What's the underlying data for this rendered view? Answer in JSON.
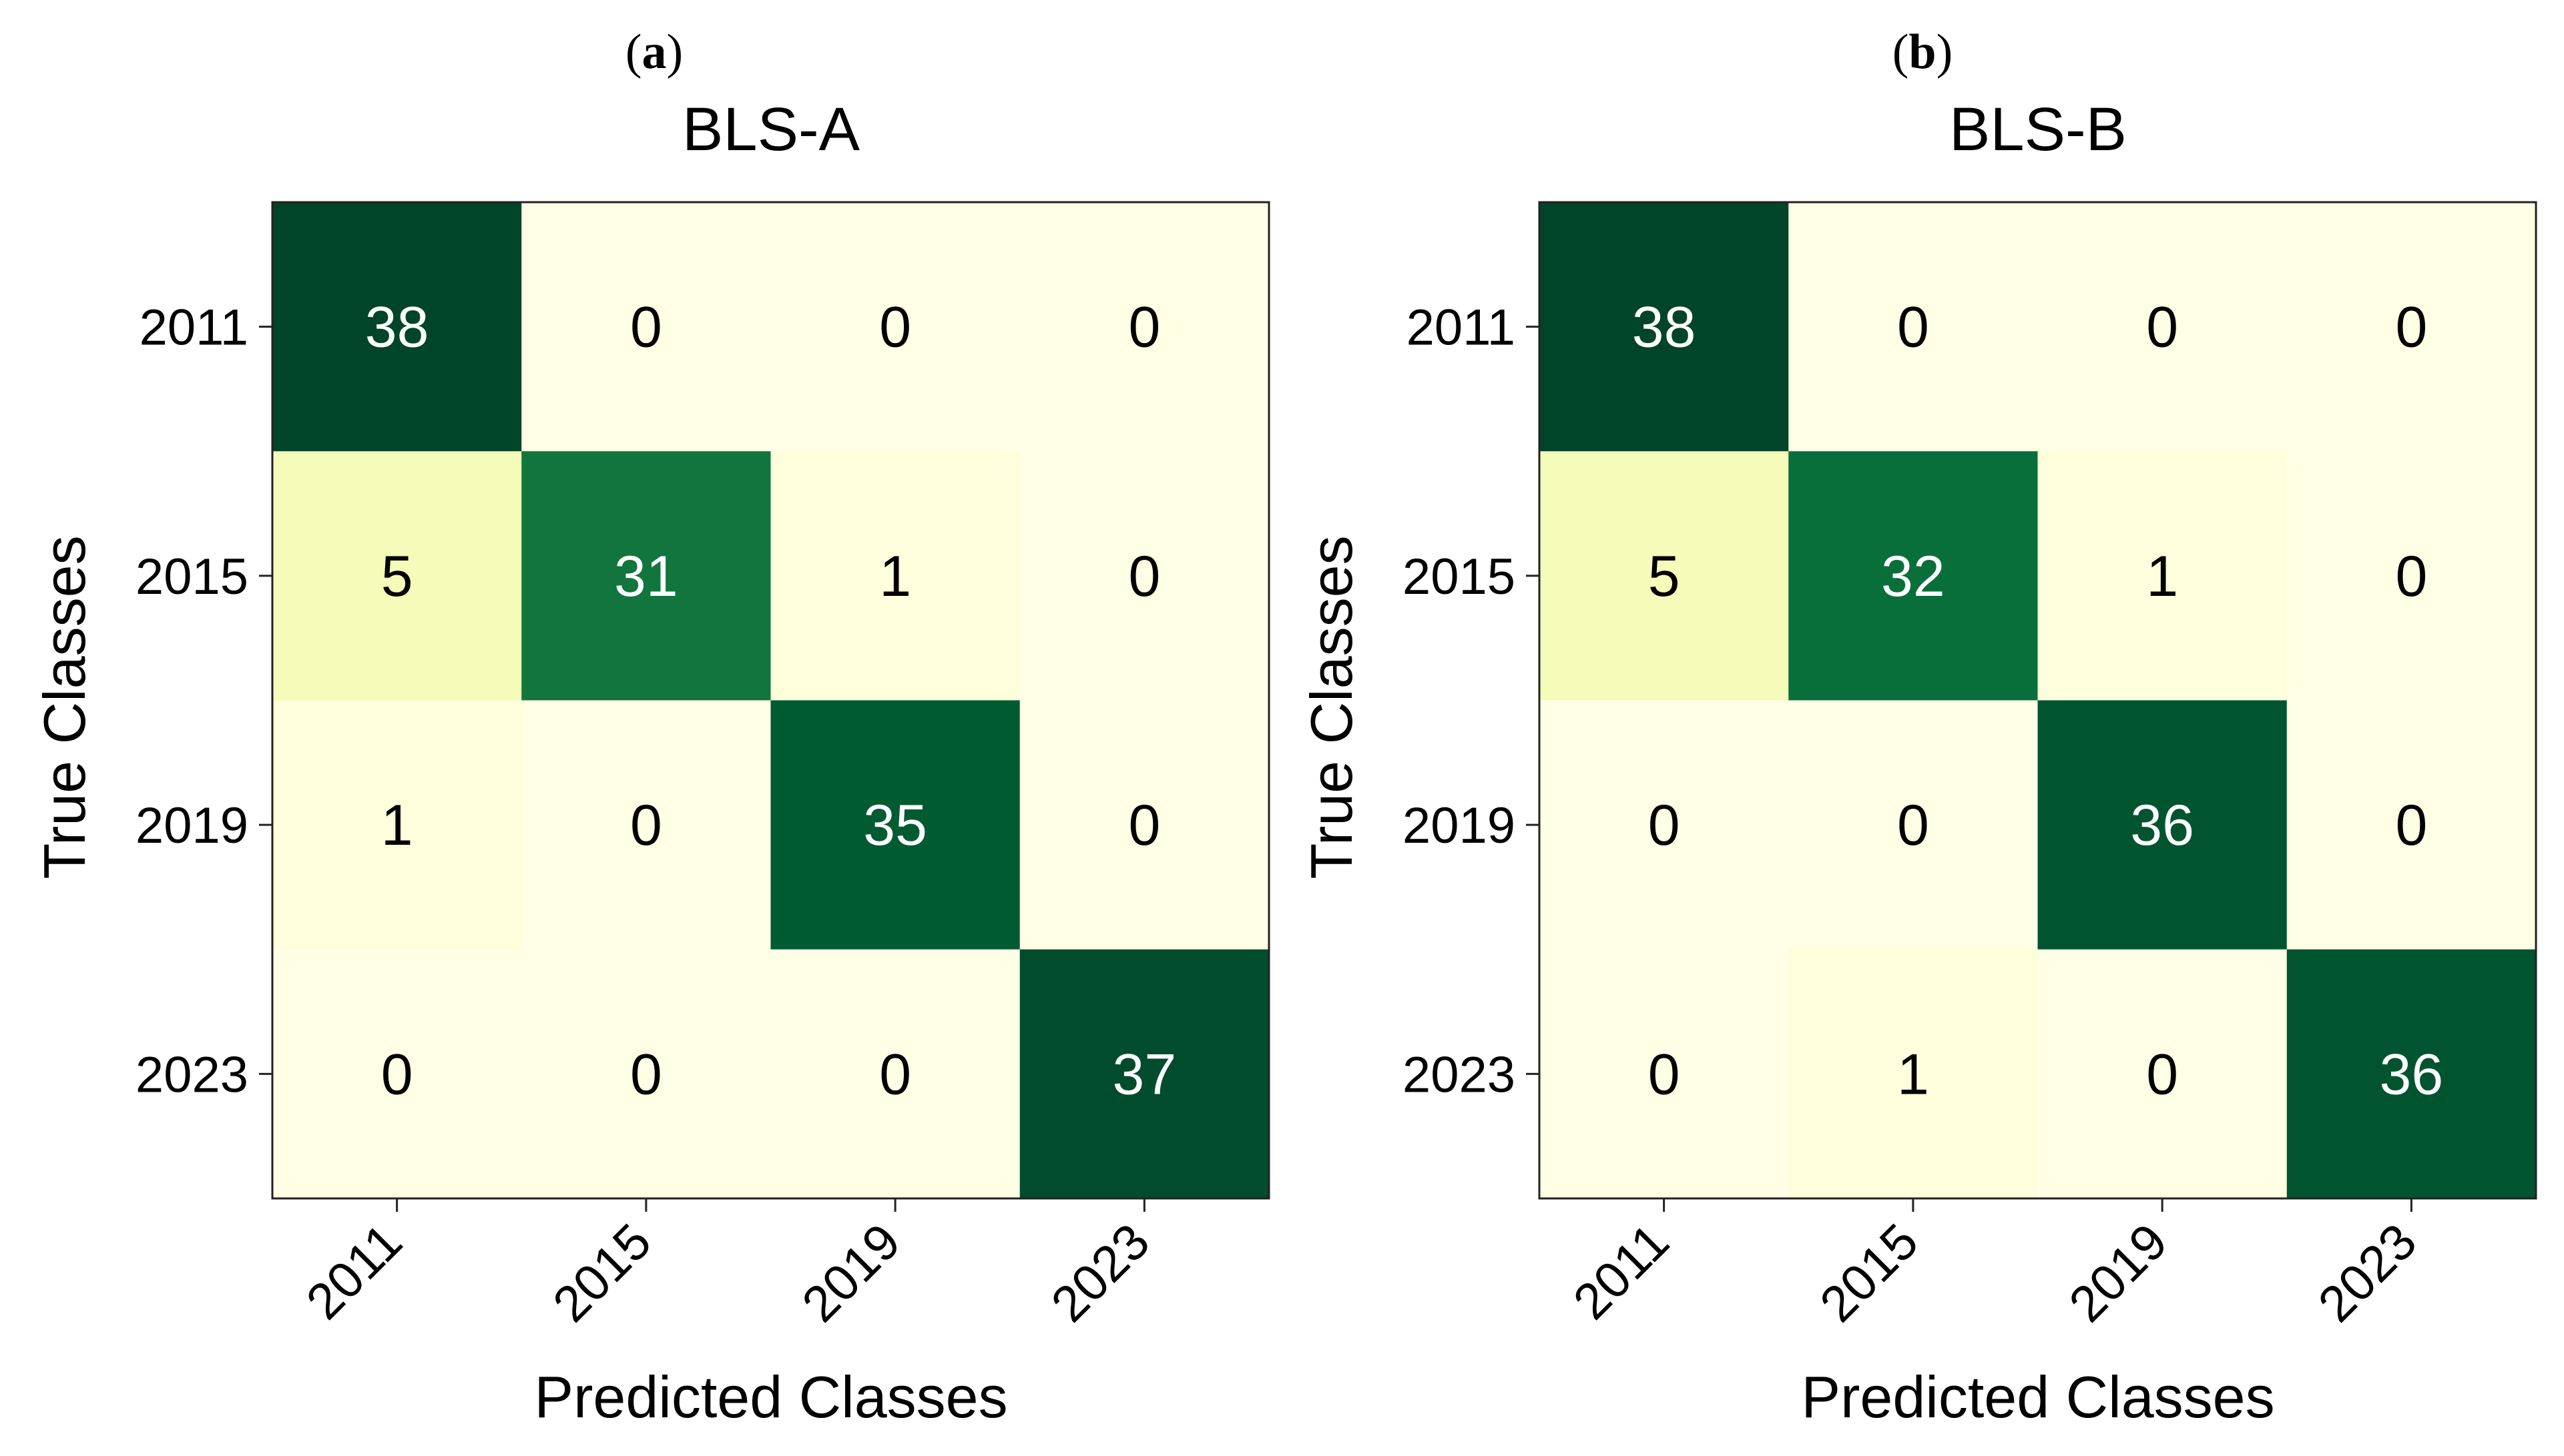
{
  "figure": {
    "panels": [
      {
        "letter": "a",
        "open": "(",
        "close": ")"
      },
      {
        "letter": "b",
        "open": "(",
        "close": ")"
      }
    ]
  },
  "chart_data": [
    {
      "type": "heatmap",
      "title": "BLS-A",
      "xlabel": "Predicted Classes",
      "ylabel": "True Classes",
      "x_categories": [
        "2011",
        "2015",
        "2019",
        "2023"
      ],
      "y_categories": [
        "2011",
        "2015",
        "2019",
        "2023"
      ],
      "values": [
        [
          38,
          0,
          0,
          0
        ],
        [
          5,
          31,
          1,
          0
        ],
        [
          1,
          0,
          35,
          0
        ],
        [
          0,
          0,
          0,
          37
        ]
      ],
      "vmin": 0,
      "vmax": 38,
      "colormap": "YlGn",
      "colors": {
        "low": "#ffffe5",
        "high": "#004529",
        "text_dark": "#000000",
        "text_light": "#ffffff"
      }
    },
    {
      "type": "heatmap",
      "title": "BLS-B",
      "xlabel": "Predicted Classes",
      "ylabel": "True Classes",
      "x_categories": [
        "2011",
        "2015",
        "2019",
        "2023"
      ],
      "y_categories": [
        "2011",
        "2015",
        "2019",
        "2023"
      ],
      "values": [
        [
          38,
          0,
          0,
          0
        ],
        [
          5,
          32,
          1,
          0
        ],
        [
          0,
          0,
          36,
          0
        ],
        [
          0,
          1,
          0,
          36
        ]
      ],
      "vmin": 0,
      "vmax": 38,
      "colormap": "YlGn",
      "colors": {
        "low": "#ffffe5",
        "high": "#004529",
        "text_dark": "#000000",
        "text_light": "#ffffff"
      }
    }
  ]
}
